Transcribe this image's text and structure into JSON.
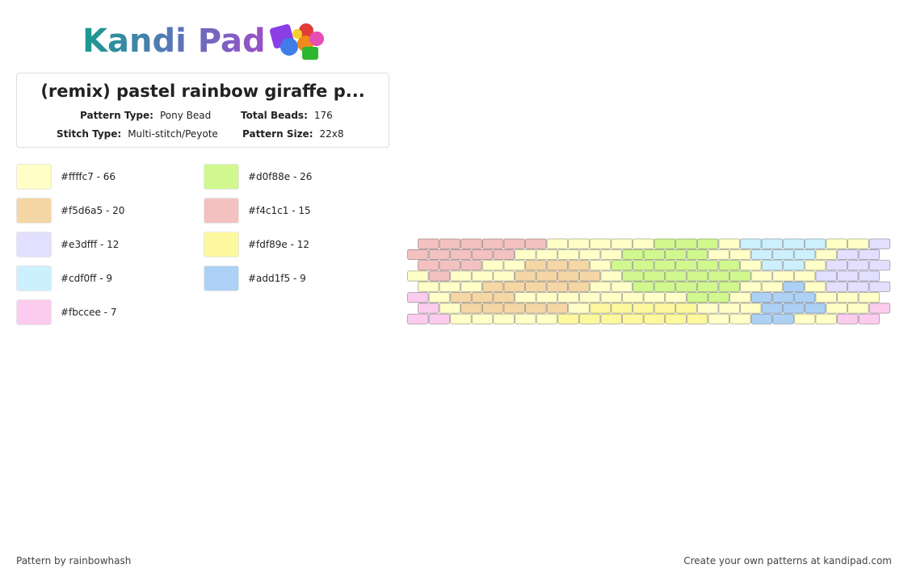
{
  "header": {
    "logo": "Kandi Pad"
  },
  "info": {
    "title": "(remix) pastel rainbow giraffe p...",
    "pattern_type_label": "Pattern Type:",
    "pattern_type": "Pony Bead",
    "total_beads_label": "Total Beads:",
    "total_beads": 176,
    "stitch_type_label": "Stitch Type:",
    "stitch_type": "Multi-stitch/Peyote",
    "pattern_size_label": "Pattern Size:",
    "pattern_size": "22x8"
  },
  "legend": [
    {
      "color": "#ffffc7",
      "label": "#ffffc7 - 66"
    },
    {
      "color": "#d0f88e",
      "label": "#d0f88e - 26"
    },
    {
      "color": "#f5d6a5",
      "label": "#f5d6a5 - 20"
    },
    {
      "color": "#f4c1c1",
      "label": "#f4c1c1 - 15"
    },
    {
      "color": "#e3dfff",
      "label": "#e3dfff - 12"
    },
    {
      "color": "#fdf89e",
      "label": "#fdf89e - 12"
    },
    {
      "color": "#cdf0ff",
      "label": "#cdf0ff - 9"
    },
    {
      "color": "#add1f5",
      "label": "#add1f5 - 9"
    },
    {
      "color": "#fbccee",
      "label": "#fbccee - 7"
    }
  ],
  "pattern": {
    "rows": [
      [
        "#f4c1c1",
        "#f4c1c1",
        "#f4c1c1",
        "#f4c1c1",
        "#f4c1c1",
        "#f4c1c1",
        "#ffffc7",
        "#ffffc7",
        "#ffffc7",
        "#ffffc7",
        "#ffffc7",
        "#d0f88e",
        "#d0f88e",
        "#d0f88e",
        "#ffffc7",
        "#cdf0ff",
        "#cdf0ff",
        "#cdf0ff",
        "#cdf0ff",
        "#ffffc7",
        "#ffffc7",
        "#e3dfff"
      ],
      [
        "#f4c1c1",
        "#f4c1c1",
        "#f4c1c1",
        "#f4c1c1",
        "#f4c1c1",
        "#ffffc7",
        "#ffffc7",
        "#ffffc7",
        "#ffffc7",
        "#ffffc7",
        "#d0f88e",
        "#d0f88e",
        "#d0f88e",
        "#d0f88e",
        "#ffffc7",
        "#ffffc7",
        "#cdf0ff",
        "#cdf0ff",
        "#cdf0ff",
        "#ffffc7",
        "#e3dfff",
        "#e3dfff"
      ],
      [
        "#f4c1c1",
        "#f4c1c1",
        "#f4c1c1",
        "#ffffc7",
        "#ffffc7",
        "#f5d6a5",
        "#f5d6a5",
        "#f5d6a5",
        "#ffffc7",
        "#d0f88e",
        "#d0f88e",
        "#d0f88e",
        "#d0f88e",
        "#d0f88e",
        "#d0f88e",
        "#ffffc7",
        "#cdf0ff",
        "#cdf0ff",
        "#ffffc7",
        "#e3dfff",
        "#e3dfff",
        "#e3dfff"
      ],
      [
        "#ffffc7",
        "#f4c1c1",
        "#ffffc7",
        "#ffffc7",
        "#ffffc7",
        "#f5d6a5",
        "#f5d6a5",
        "#f5d6a5",
        "#f5d6a5",
        "#ffffc7",
        "#d0f88e",
        "#d0f88e",
        "#d0f88e",
        "#d0f88e",
        "#d0f88e",
        "#d0f88e",
        "#ffffc7",
        "#ffffc7",
        "#ffffc7",
        "#e3dfff",
        "#e3dfff",
        "#e3dfff"
      ],
      [
        "#ffffc7",
        "#ffffc7",
        "#ffffc7",
        "#f5d6a5",
        "#f5d6a5",
        "#f5d6a5",
        "#f5d6a5",
        "#f5d6a5",
        "#ffffc7",
        "#ffffc7",
        "#d0f88e",
        "#d0f88e",
        "#d0f88e",
        "#d0f88e",
        "#d0f88e",
        "#ffffc7",
        "#ffffc7",
        "#add1f5",
        "#ffffc7",
        "#e3dfff",
        "#e3dfff",
        "#e3dfff"
      ],
      [
        "#fbccee",
        "#ffffc7",
        "#f5d6a5",
        "#f5d6a5",
        "#f5d6a5",
        "#ffffc7",
        "#ffffc7",
        "#ffffc7",
        "#ffffc7",
        "#ffffc7",
        "#ffffc7",
        "#ffffc7",
        "#ffffc7",
        "#d0f88e",
        "#d0f88e",
        "#ffffc7",
        "#add1f5",
        "#add1f5",
        "#add1f5",
        "#ffffc7",
        "#ffffc7",
        "#ffffc7"
      ],
      [
        "#fbccee",
        "#ffffc7",
        "#f5d6a5",
        "#f5d6a5",
        "#f5d6a5",
        "#f5d6a5",
        "#f5d6a5",
        "#ffffc7",
        "#fdf89e",
        "#fdf89e",
        "#fdf89e",
        "#fdf89e",
        "#fdf89e",
        "#ffffc7",
        "#ffffc7",
        "#ffffc7",
        "#add1f5",
        "#add1f5",
        "#add1f5",
        "#ffffc7",
        "#ffffc7",
        "#fbccee"
      ],
      [
        "#fbccee",
        "#fbccee",
        "#ffffc7",
        "#ffffc7",
        "#ffffc7",
        "#ffffc7",
        "#ffffc7",
        "#fdf89e",
        "#fdf89e",
        "#fdf89e",
        "#fdf89e",
        "#fdf89e",
        "#fdf89e",
        "#fdf89e",
        "#ffffc7",
        "#ffffc7",
        "#add1f5",
        "#add1f5",
        "#ffffc7",
        "#ffffc7",
        "#fbccee",
        "#fbccee"
      ]
    ]
  },
  "footer": {
    "left": "Pattern by rainbowhash",
    "right": "Create your own patterns at kandipad.com"
  }
}
